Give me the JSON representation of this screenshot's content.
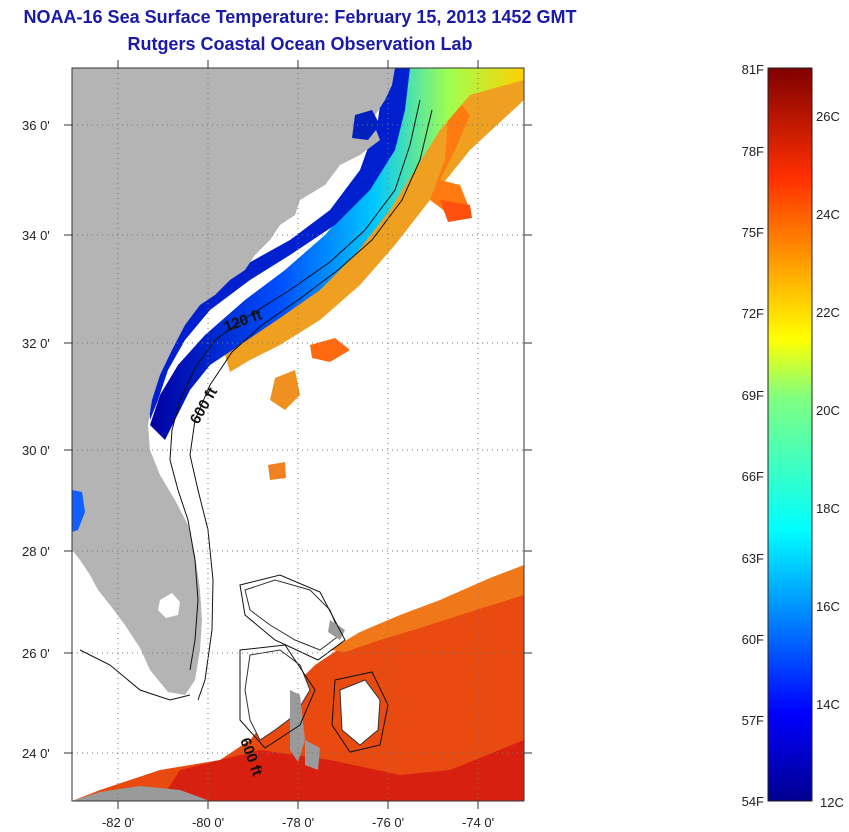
{
  "header": {
    "title": "NOAA-16 Sea Surface Temperature:  February 15, 2013 1452 GMT",
    "subtitle": "Rutgers Coastal Ocean Observation Lab"
  },
  "map": {
    "lat_labels": [
      "36 0'",
      "34 0'",
      "32 0'",
      "30 0'",
      "28 0'",
      "26 0'",
      "24 0'"
    ],
    "lon_labels": [
      "-82 0'",
      "-80 0'",
      "-78 0'",
      "-76 0'",
      "-74 0'"
    ],
    "contour_labels": {
      "c120": "120 ft",
      "c600a": "600 ft",
      "c600b": "600 ft"
    },
    "colors": {
      "land": "#b4b4b4",
      "cold": "#0000aa",
      "warm": "#e03010",
      "nodata": "#ffffff"
    }
  },
  "colorbar": {
    "fahrenheit_labels": [
      "81F",
      "78F",
      "75F",
      "72F",
      "69F",
      "66F",
      "63F",
      "60F",
      "57F",
      "54F"
    ],
    "celsius_labels": [
      "26C",
      "24C",
      "22C",
      "20C",
      "18C",
      "16C",
      "14C",
      "12C"
    ],
    "range_celsius": [
      12,
      27
    ],
    "range_fahrenheit": [
      54,
      81
    ]
  }
}
